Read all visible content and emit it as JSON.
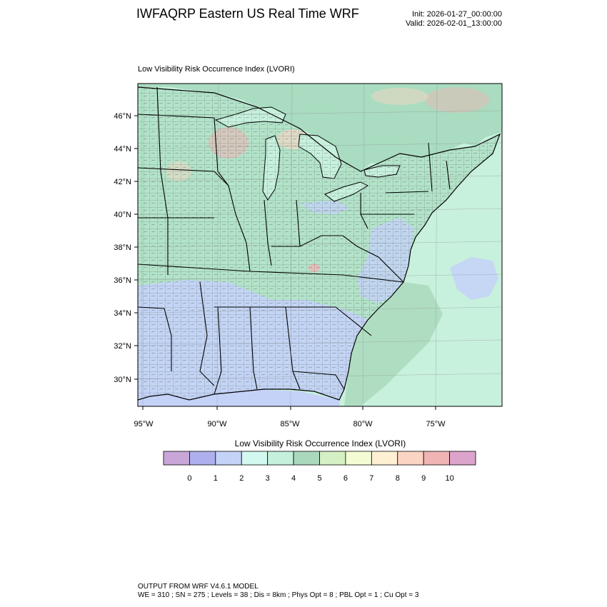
{
  "header": {
    "title": "IWFAQRP Eastern US Real Time WRF",
    "init": "Init: 2026-01-27_00:00:00",
    "valid": "Valid: 2026-02-01_13:00:00"
  },
  "map": {
    "title": "Low Visibility Risk Occurrence Index   (LVORI)",
    "lat_labels": [
      "46°N",
      "44°N",
      "42°N",
      "40°N",
      "38°N",
      "36°N",
      "34°N",
      "32°N",
      "30°N"
    ],
    "lon_labels": [
      "95°W",
      "90°W",
      "85°W",
      "80°W",
      "75°W"
    ],
    "colors": {
      "ocean": "#c7f0dd",
      "land": "#a9dcc0",
      "border": "#000000"
    }
  },
  "colorbar": {
    "title": "Low Visibility Risk Occurrence Index  (LVORI)",
    "labels": [
      "0",
      "1",
      "2",
      "3",
      "4",
      "5",
      "6",
      "7",
      "8",
      "9",
      "10"
    ],
    "colors": [
      "#c8a6d8",
      "#aeb0ee",
      "#c4d2f8",
      "#d2f8f0",
      "#c4f0dc",
      "#a9d8bc",
      "#d4f0c4",
      "#f4fcd4",
      "#fff0d4",
      "#fcd4c4",
      "#f0b4b4",
      "#dca4cc"
    ]
  },
  "footer": {
    "line1": "OUTPUT FROM WRF V4.6.1 MODEL",
    "line2": "WE = 310 ; SN = 275 ; Levels = 38 ; Dis = 8km ; Phys Opt = 8 ; PBL Opt = 1 ; Cu Opt = 3"
  }
}
